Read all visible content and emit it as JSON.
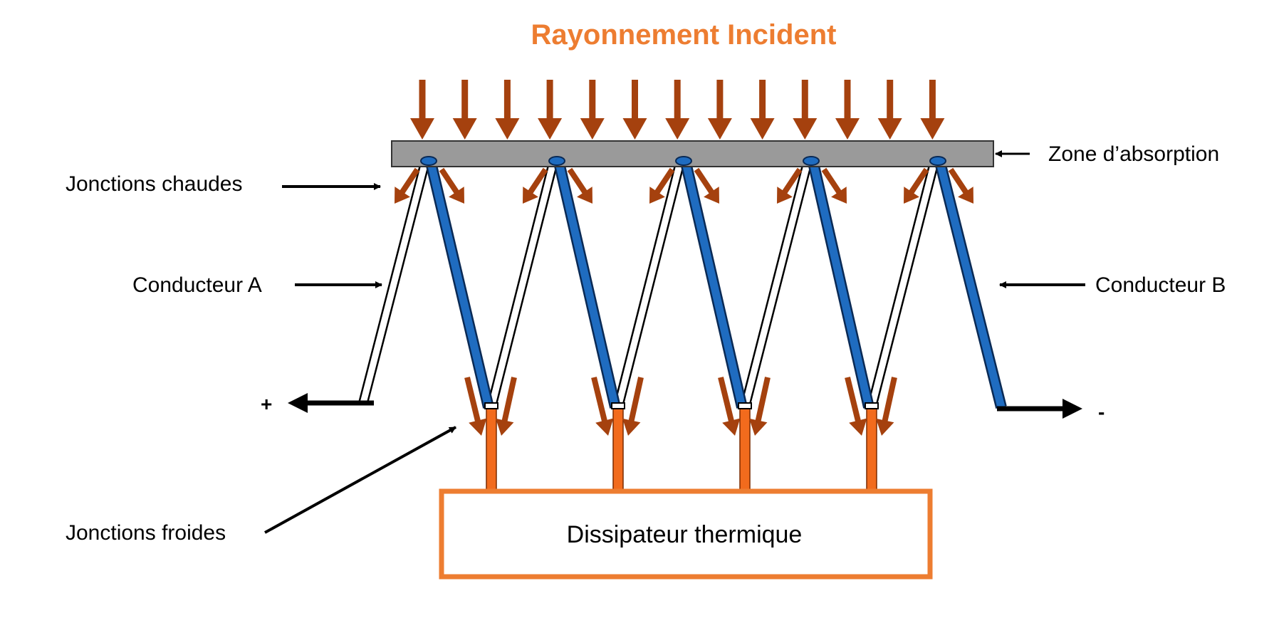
{
  "title": "Rayonnement Incident",
  "labels": {
    "absorption_zone": "Zone d’absorption",
    "hot_junctions": "Jonctions chaudes",
    "conductor_a": "Conducteur A",
    "conductor_b": "Conducteur B",
    "cold_junctions": "Jonctions froides",
    "heat_sink": "Dissipateur thermique",
    "plus": "+",
    "minus": "-"
  },
  "colors": {
    "title": "#ED7D31",
    "radiation_arrow": "#A5410E",
    "absorber": "#9A9A9A",
    "conductor_b": "#1F6CC0",
    "cold_leg": "#F26B1D",
    "heat_sink_border": "#ED7D31",
    "pointer": "#000000"
  }
}
